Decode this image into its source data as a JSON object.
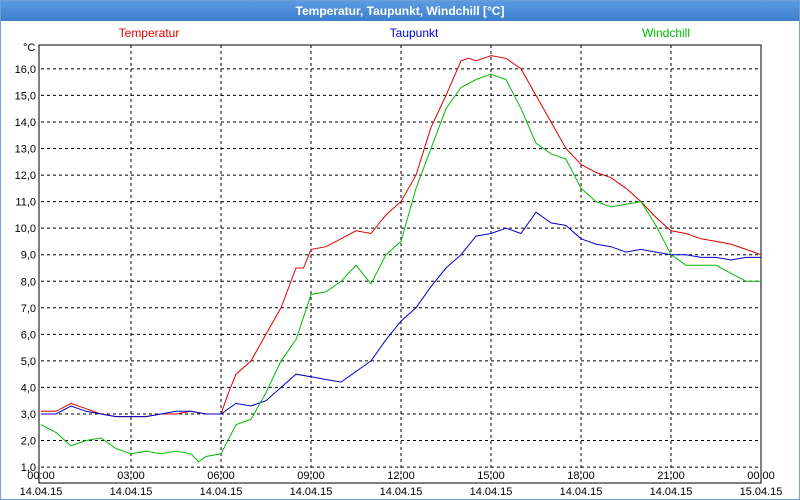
{
  "window": {
    "title": "Temperatur, Taupunkt, Windchill [°C]"
  },
  "chart_data": {
    "type": "line",
    "title": "Temperatur, Taupunkt, Windchill [°C]",
    "unit_label": "°C",
    "x_range_hours": [
      0,
      24
    ],
    "ylim": [
      0.4,
      16.9
    ],
    "y_ticks": [
      "1,0",
      "2,0",
      "3,0",
      "4,0",
      "5,0",
      "6,0",
      "7,0",
      "8,0",
      "9,0",
      "10,0",
      "11,0",
      "12,0",
      "13,0",
      "14,0",
      "15,0",
      "16,0"
    ],
    "y_tick_values": [
      1,
      2,
      3,
      4,
      5,
      6,
      7,
      8,
      9,
      10,
      11,
      12,
      13,
      14,
      15,
      16
    ],
    "x_ticks": [
      {
        "time": "00:00",
        "date": "14.04.15"
      },
      {
        "time": "03:00",
        "date": "14.04.15"
      },
      {
        "time": "06:00",
        "date": "14.04.15"
      },
      {
        "time": "09:00",
        "date": "14.04.15"
      },
      {
        "time": "12:00",
        "date": "14.04.15"
      },
      {
        "time": "15:00",
        "date": "14.04.15"
      },
      {
        "time": "18:00",
        "date": "14.04.15"
      },
      {
        "time": "21:00",
        "date": "14.04.15"
      },
      {
        "time": "00:00",
        "date": "15.04.15"
      }
    ],
    "grid": true,
    "series": [
      {
        "name": "Temperatur",
        "color": "#dd0000",
        "x": [
          0,
          0.5,
          1,
          1.5,
          2,
          2.5,
          3,
          3.5,
          4,
          4.5,
          5,
          5.5,
          6,
          6.25,
          6.5,
          7,
          7.5,
          8,
          8.5,
          8.75,
          9,
          9.5,
          10,
          10.5,
          11,
          11.5,
          12,
          12.5,
          13,
          13.5,
          14,
          14.25,
          14.5,
          15,
          15.5,
          16,
          16.5,
          17,
          17.5,
          18,
          18.5,
          19,
          19.5,
          20,
          20.5,
          21,
          21.5,
          22,
          22.5,
          23,
          23.5,
          24
        ],
        "values": [
          3.1,
          3.1,
          3.4,
          3.2,
          3.0,
          2.9,
          2.9,
          2.9,
          3.0,
          3.0,
          3.1,
          3.0,
          3.0,
          3.8,
          4.5,
          5.0,
          6.0,
          7.0,
          8.5,
          8.5,
          9.2,
          9.3,
          9.6,
          9.9,
          9.8,
          10.5,
          11.0,
          12.0,
          13.8,
          15.0,
          16.3,
          16.4,
          16.3,
          16.5,
          16.4,
          16.0,
          15.0,
          14.0,
          13.0,
          12.4,
          12.1,
          11.9,
          11.5,
          11.0,
          10.4,
          9.9,
          9.8,
          9.6,
          9.5,
          9.4,
          9.2,
          9.0
        ]
      },
      {
        "name": "Taupunkt",
        "color": "#0000cc",
        "x": [
          0,
          0.5,
          1,
          1.5,
          2,
          2.5,
          3,
          3.5,
          4,
          4.5,
          5,
          5.5,
          6,
          6.5,
          7,
          7.5,
          8,
          8.5,
          9,
          9.5,
          10,
          10.5,
          11,
          11.5,
          12,
          12.5,
          13,
          13.5,
          14,
          14.5,
          15,
          15.5,
          16,
          16.5,
          17,
          17.5,
          18,
          18.5,
          19,
          19.5,
          20,
          20.5,
          21,
          21.5,
          22,
          22.5,
          23,
          23.5,
          24
        ],
        "values": [
          3.0,
          3.0,
          3.3,
          3.1,
          3.0,
          2.9,
          2.9,
          2.9,
          3.0,
          3.1,
          3.1,
          3.0,
          3.0,
          3.4,
          3.3,
          3.5,
          4.0,
          4.5,
          4.4,
          4.3,
          4.2,
          4.6,
          5.0,
          5.8,
          6.5,
          7.0,
          7.8,
          8.5,
          9.0,
          9.7,
          9.8,
          10.0,
          9.8,
          10.6,
          10.2,
          10.1,
          9.6,
          9.4,
          9.3,
          9.1,
          9.2,
          9.1,
          9.0,
          9.0,
          8.9,
          8.9,
          8.8,
          8.9,
          8.9
        ]
      },
      {
        "name": "Windchill",
        "color": "#00bb00",
        "x": [
          0,
          0.5,
          1,
          1.5,
          2,
          2.5,
          3,
          3.5,
          4,
          4.5,
          5,
          5.25,
          5.5,
          6,
          6.5,
          7,
          7.5,
          8,
          8.5,
          9,
          9.5,
          10,
          10.5,
          11,
          11.5,
          12,
          12.5,
          13,
          13.5,
          14,
          14.5,
          15,
          15.5,
          16,
          16.5,
          17,
          17.5,
          18,
          18.5,
          19,
          19.5,
          20,
          20.5,
          21,
          21.5,
          22,
          22.5,
          23,
          23.5,
          24
        ],
        "values": [
          2.6,
          2.3,
          1.8,
          2.0,
          2.1,
          1.7,
          1.5,
          1.6,
          1.5,
          1.6,
          1.5,
          1.2,
          1.4,
          1.5,
          2.6,
          2.8,
          3.8,
          5.0,
          5.8,
          7.5,
          7.6,
          8.0,
          8.6,
          7.9,
          9.0,
          9.5,
          11.5,
          13.0,
          14.5,
          15.3,
          15.6,
          15.8,
          15.6,
          14.5,
          13.2,
          12.8,
          12.6,
          11.5,
          11.0,
          10.8,
          10.9,
          11.0,
          10.1,
          9.0,
          8.6,
          8.6,
          8.6,
          8.3,
          8.0,
          8.0
        ]
      }
    ]
  }
}
